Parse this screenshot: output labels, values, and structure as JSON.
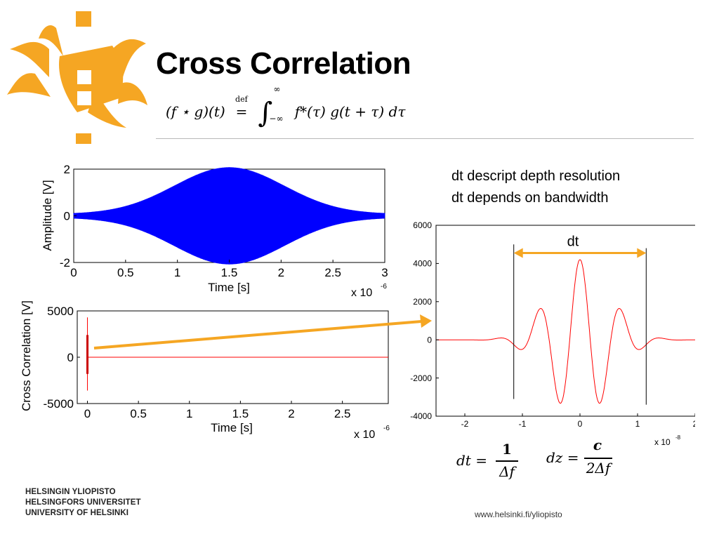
{
  "slide": {
    "title": "Cross Correlation",
    "formula": {
      "lhs": "(f ⋆ g)(t)",
      "def": "def",
      "upper": "∞",
      "lower": "−∞",
      "integrand": "f*(τ)  g(t + τ) dτ"
    },
    "notes": [
      "dt descript depth resolution",
      "dt depends on bandwidth"
    ],
    "equations": {
      "dt_lhs": "dt =",
      "dt_num": "1",
      "dt_den": "Δf",
      "dz_lhs": "dz =",
      "dz_num": "c",
      "dz_den": "2Δf"
    },
    "university": [
      "HELSINGIN YLIOPISTO",
      "HELSINGFORS UNIVERSITET",
      "UNIVERSITY OF HELSINKI"
    ],
    "url": "www.helsinki.fi/yliopisto",
    "accent_color": "#f5a623"
  },
  "chart_data": [
    {
      "type": "line",
      "description_series": "chirp signal with gaussian envelope",
      "xlabel": "Time [s]",
      "ylabel": "Amplitude [V]",
      "xlim": [
        0,
        3
      ],
      "ylim": [
        -2,
        2
      ],
      "x_ticks": [
        "0",
        "0.5",
        "1",
        "1.5",
        "2",
        "2.5",
        "3"
      ],
      "y_ticks": [
        "2",
        "0",
        "-2"
      ],
      "x_multiplier": "x 10",
      "x_exponent": "-6",
      "envelope_peak": {
        "x": 1.5,
        "y": 2
      },
      "color": "#0000ff"
    },
    {
      "type": "line",
      "xlabel": "Time [s]",
      "ylabel": "Cross Correlation [V]",
      "xlim": [
        -0.1,
        2.95
      ],
      "ylim": [
        -5000,
        5000
      ],
      "x_ticks": [
        "0",
        "0.5",
        "1",
        "1.5",
        "2",
        "2.5"
      ],
      "y_ticks": [
        "5000",
        "0",
        "-5000"
      ],
      "x_multiplier": "x 10",
      "x_exponent": "-6",
      "spike": {
        "x": 0,
        "max": 4300,
        "min": -3600
      },
      "color": "#ff0000"
    },
    {
      "type": "line",
      "xlim": [
        -2.5,
        2.5
      ],
      "ylim": [
        -4000,
        6000
      ],
      "x_ticks": [
        "-2",
        "-1",
        "0",
        "1",
        "2"
      ],
      "y_ticks": [
        "6000",
        "4000",
        "2000",
        "0",
        "-2000",
        "-4000"
      ],
      "x_multiplier": "x 10",
      "x_exponent": "-8",
      "peak": {
        "x": 0,
        "y": 4200
      },
      "dt_markers": [
        -1.15,
        1.15
      ],
      "dt_label": "dt",
      "color": "#ff0000"
    }
  ]
}
